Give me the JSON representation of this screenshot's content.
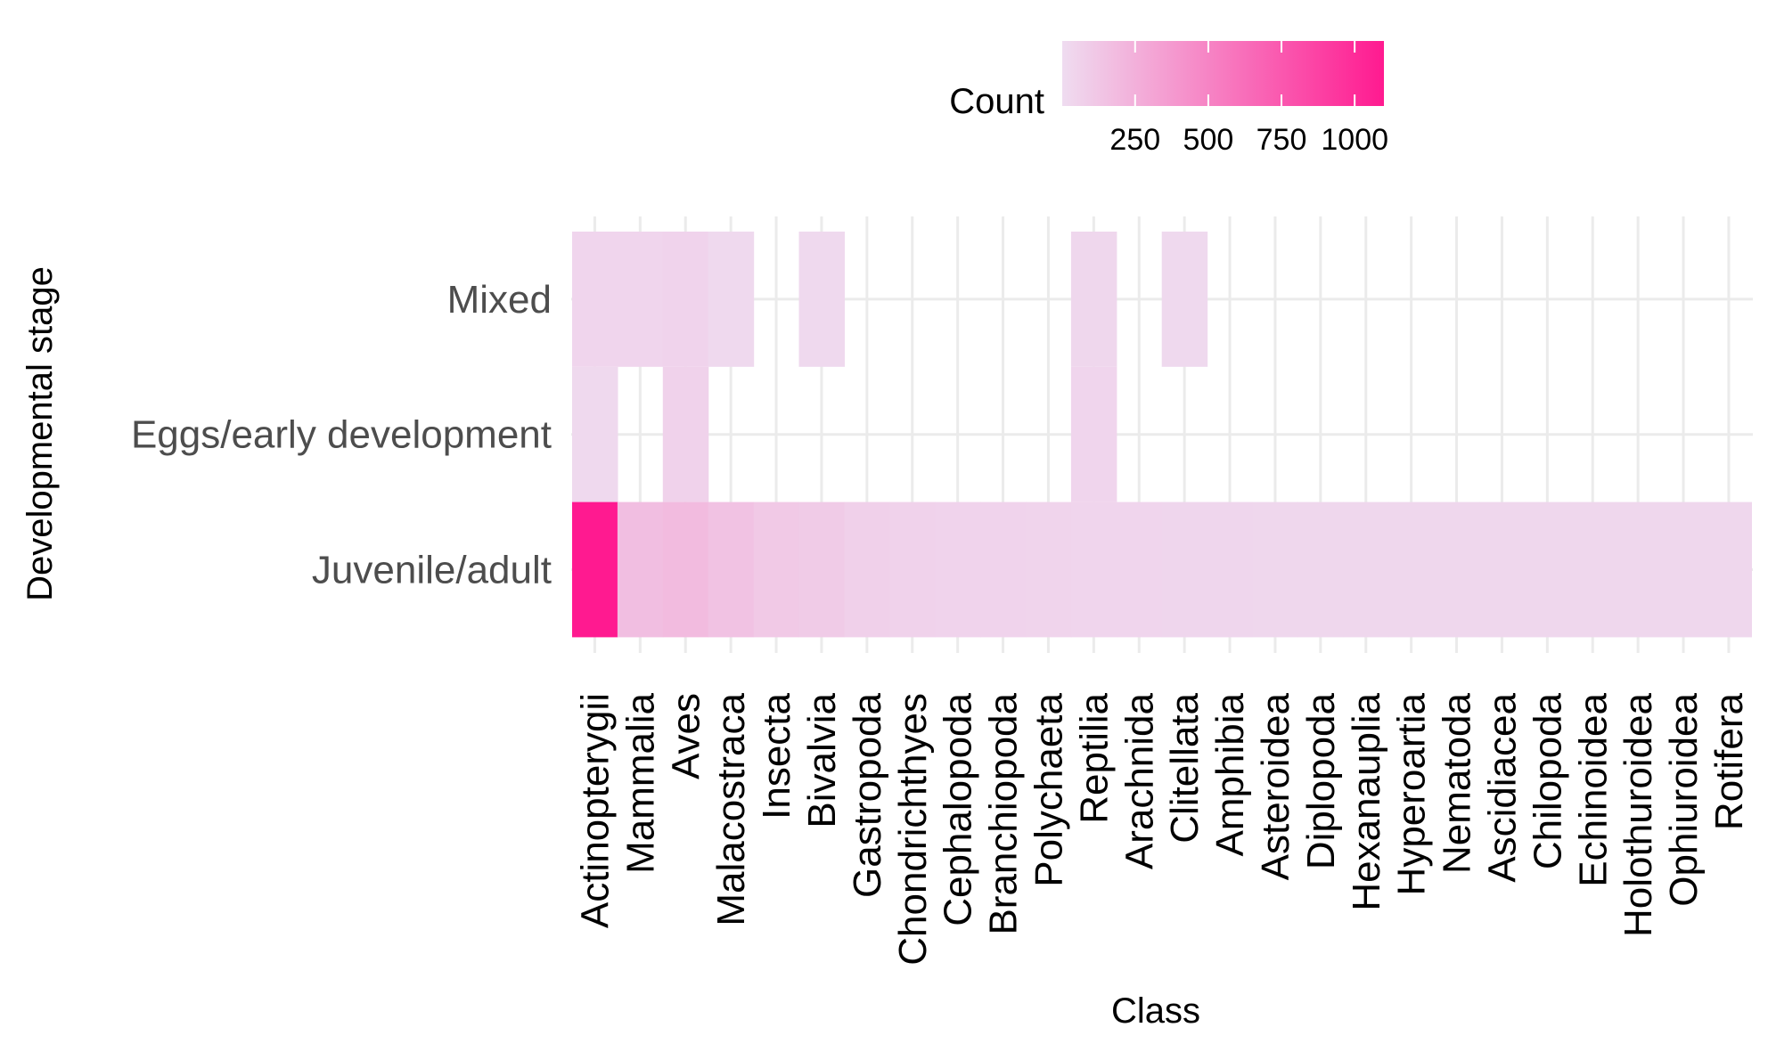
{
  "chart_data": {
    "type": "heatmap",
    "xlabel": "Class",
    "ylabel": "Developmental stage",
    "x_categories": [
      "Actinopterygii",
      "Mammalia",
      "Aves",
      "Malacostraca",
      "Insecta",
      "Bivalvia",
      "Gastropoda",
      "Chondrichthyes",
      "Cephalopoda",
      "Branchiopoda",
      "Polychaeta",
      "Reptilia",
      "Arachnida",
      "Clitellata",
      "Amphibia",
      "Asteroidea",
      "Diplopoda",
      "Hexanauplia",
      "Hyperoartia",
      "Nematoda",
      "Ascidiacea",
      "Chilopoda",
      "Echinoidea",
      "Holothuroidea",
      "Ophiuroidea",
      "Rotifera"
    ],
    "y_categories": [
      "Mixed",
      "Eggs/early development",
      "Juvenile/adult"
    ],
    "cells": [
      {
        "x": "Actinopterygii",
        "y": "Mixed",
        "value": 40
      },
      {
        "x": "Mammalia",
        "y": "Mixed",
        "value": 40
      },
      {
        "x": "Aves",
        "y": "Mixed",
        "value": 50
      },
      {
        "x": "Malacostraca",
        "y": "Mixed",
        "value": 20
      },
      {
        "x": "Bivalvia",
        "y": "Mixed",
        "value": 20
      },
      {
        "x": "Reptilia",
        "y": "Mixed",
        "value": 30
      },
      {
        "x": "Clitellata",
        "y": "Mixed",
        "value": 20
      },
      {
        "x": "Actinopterygii",
        "y": "Eggs/early development",
        "value": 20
      },
      {
        "x": "Aves",
        "y": "Eggs/early development",
        "value": 60
      },
      {
        "x": "Reptilia",
        "y": "Eggs/early development",
        "value": 40
      },
      {
        "x": "Actinopterygii",
        "y": "Juvenile/adult",
        "value": 1100
      },
      {
        "x": "Mammalia",
        "y": "Juvenile/adult",
        "value": 170
      },
      {
        "x": "Aves",
        "y": "Juvenile/adult",
        "value": 190
      },
      {
        "x": "Malacostraca",
        "y": "Juvenile/adult",
        "value": 150
      },
      {
        "x": "Insecta",
        "y": "Juvenile/adult",
        "value": 110
      },
      {
        "x": "Bivalvia",
        "y": "Juvenile/adult",
        "value": 100
      },
      {
        "x": "Gastropoda",
        "y": "Juvenile/adult",
        "value": 70
      },
      {
        "x": "Chondrichthyes",
        "y": "Juvenile/adult",
        "value": 60
      },
      {
        "x": "Cephalopoda",
        "y": "Juvenile/adult",
        "value": 50
      },
      {
        "x": "Branchiopoda",
        "y": "Juvenile/adult",
        "value": 50
      },
      {
        "x": "Polychaeta",
        "y": "Juvenile/adult",
        "value": 45
      },
      {
        "x": "Reptilia",
        "y": "Juvenile/adult",
        "value": 40
      },
      {
        "x": "Arachnida",
        "y": "Juvenile/adult",
        "value": 40
      },
      {
        "x": "Clitellata",
        "y": "Juvenile/adult",
        "value": 35
      },
      {
        "x": "Amphibia",
        "y": "Juvenile/adult",
        "value": 35
      },
      {
        "x": "Asteroidea",
        "y": "Juvenile/adult",
        "value": 30
      },
      {
        "x": "Diplopoda",
        "y": "Juvenile/adult",
        "value": 30
      },
      {
        "x": "Hexanauplia",
        "y": "Juvenile/adult",
        "value": 30
      },
      {
        "x": "Hyperoartia",
        "y": "Juvenile/adult",
        "value": 30
      },
      {
        "x": "Nematoda",
        "y": "Juvenile/adult",
        "value": 30
      },
      {
        "x": "Ascidiacea",
        "y": "Juvenile/adult",
        "value": 30
      },
      {
        "x": "Chilopoda",
        "y": "Juvenile/adult",
        "value": 30
      },
      {
        "x": "Echinoidea",
        "y": "Juvenile/adult",
        "value": 30
      },
      {
        "x": "Holothuroidea",
        "y": "Juvenile/adult",
        "value": 30
      },
      {
        "x": "Ophiuroidea",
        "y": "Juvenile/adult",
        "value": 30
      },
      {
        "x": "Rotifera",
        "y": "Juvenile/adult",
        "value": 30
      }
    ],
    "legend": {
      "title": "Count",
      "placement": "top",
      "ticks": [
        250,
        500,
        750,
        1000
      ],
      "tick_labels": [
        "250",
        "500",
        "750",
        "1000"
      ],
      "range": [
        1,
        1100
      ],
      "low_color": "#efdcf0",
      "high_color": "#ff1a90"
    },
    "grid": true,
    "colors": {
      "grid": "#ebebeb",
      "y_tick_text": "#4d4d4d",
      "x_tick_text": "#000000"
    }
  }
}
